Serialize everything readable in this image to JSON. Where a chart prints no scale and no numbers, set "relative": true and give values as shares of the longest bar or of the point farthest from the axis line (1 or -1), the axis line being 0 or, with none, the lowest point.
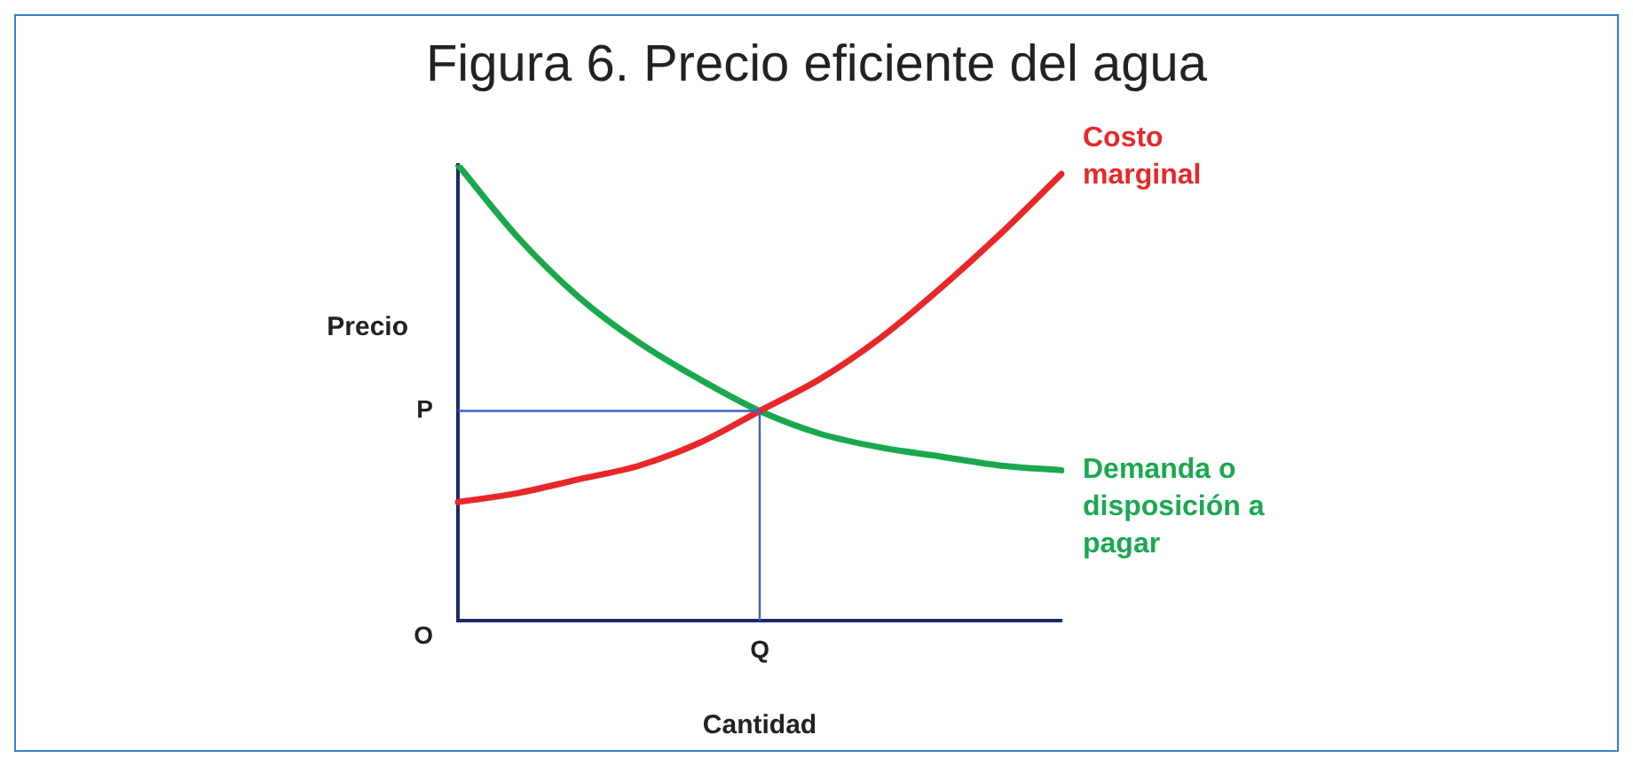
{
  "chart_data": {
    "type": "line",
    "title": "Figura 6. Precio eficiente del agua",
    "xlabel": "Cantidad",
    "ylabel": "Precio",
    "relative": true,
    "categories": [
      null,
      null,
      null,
      null,
      null,
      null,
      null,
      null,
      null,
      null,
      null
    ],
    "series": [
      {
        "name": "Costo marginal",
        "color": "#e8272a",
        "values": [
          0.26,
          0.28,
          0.31,
          0.34,
          0.39,
          0.46,
          0.53,
          0.62,
          0.73,
          0.85,
          0.98
        ]
      },
      {
        "name": "Demanda o disposición a pagar",
        "color": "#1aa84f",
        "values": [
          1,
          0.84,
          0.71,
          0.61,
          0.53,
          0.46,
          0.41,
          0.38,
          0.36,
          0.34,
          0.33
        ]
      }
    ],
    "ref_lines": [
      {
        "axis": "y",
        "value": 0.46,
        "label": "P",
        "color": "#3a62c9"
      }
    ],
    "annotations": [
      "O",
      "Q"
    ],
    "grid": false,
    "legend": false,
    "marker": "none",
    "line_style": "solid"
  }
}
